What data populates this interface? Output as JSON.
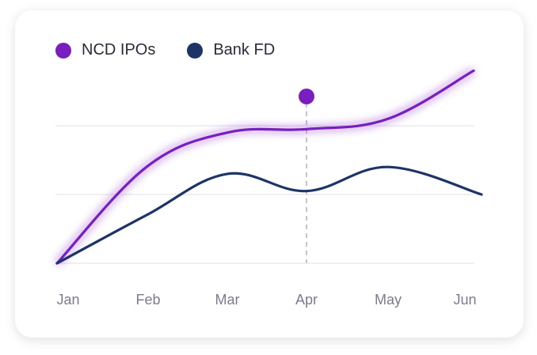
{
  "colors": {
    "ncd": "#7a1fbf",
    "fd": "#1d3468",
    "grid": "#e6e6ee",
    "marker_line": "#b0b0bc",
    "tick_text": "#7b7b8e"
  },
  "chart_data": {
    "type": "line",
    "categories": [
      "Jan",
      "Feb",
      "Mar",
      "Apr",
      "May",
      "Jun"
    ],
    "series": [
      {
        "name": "NCD IPOs",
        "values": [
          0.0,
          1.4,
          1.9,
          1.95,
          2.1,
          2.8
        ]
      },
      {
        "name": "Bank FD",
        "values": [
          0.0,
          0.7,
          1.3,
          1.05,
          1.4,
          1.0
        ]
      }
    ],
    "ylim": [
      0,
      3
    ],
    "grid": true,
    "legend": "top-left",
    "highlight_category": "Apr",
    "xlabel": "",
    "ylabel": ""
  }
}
